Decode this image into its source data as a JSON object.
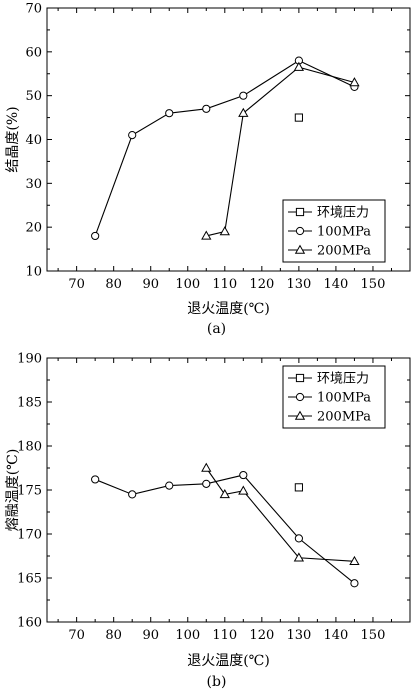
{
  "chart_data": [
    {
      "type": "line",
      "caption": "(a)",
      "xlabel": "退火温度(℃)",
      "ylabel": "结晶度(%)",
      "xlim": [
        62,
        160
      ],
      "ylim": [
        10,
        70
      ],
      "xticks": [
        70,
        80,
        90,
        100,
        110,
        120,
        130,
        140,
        150
      ],
      "yticks": [
        10,
        20,
        30,
        40,
        50,
        60,
        70
      ],
      "grid": false,
      "legend_position": "bottom-right",
      "series": [
        {
          "name": "环境压力",
          "marker": "square",
          "points": [
            [
              130,
              45
            ]
          ]
        },
        {
          "name": "100MPa",
          "marker": "circle",
          "points": [
            [
              75,
              18
            ],
            [
              85,
              41
            ],
            [
              95,
              46
            ],
            [
              105,
              47
            ],
            [
              115,
              50
            ],
            [
              130,
              58
            ],
            [
              145,
              52
            ]
          ]
        },
        {
          "name": "200MPa",
          "marker": "triangle",
          "points": [
            [
              105,
              18
            ],
            [
              110,
              19
            ],
            [
              115,
              46
            ],
            [
              130,
              56.5
            ],
            [
              145,
              53
            ]
          ]
        }
      ]
    },
    {
      "type": "line",
      "caption": "(b)",
      "xlabel": "退火温度(℃)",
      "ylabel": "熔融温度(℃)",
      "xlim": [
        62,
        160
      ],
      "ylim": [
        160,
        190
      ],
      "xticks": [
        70,
        80,
        90,
        100,
        110,
        120,
        130,
        140,
        150
      ],
      "yticks": [
        160,
        165,
        170,
        175,
        180,
        185,
        190
      ],
      "grid": false,
      "legend_position": "top-right",
      "series": [
        {
          "name": "环境压力",
          "marker": "square",
          "points": [
            [
              130,
              175.3
            ]
          ]
        },
        {
          "name": "100MPa",
          "marker": "circle",
          "points": [
            [
              75,
              176.2
            ],
            [
              85,
              174.5
            ],
            [
              95,
              175.5
            ],
            [
              105,
              175.7
            ],
            [
              115,
              176.7
            ],
            [
              130,
              169.5
            ],
            [
              145,
              164.4
            ]
          ]
        },
        {
          "name": "200MPa",
          "marker": "triangle",
          "points": [
            [
              105,
              177.5
            ],
            [
              110,
              174.5
            ],
            [
              115,
              174.9
            ],
            [
              130,
              167.3
            ],
            [
              145,
              166.9
            ]
          ]
        }
      ]
    }
  ]
}
